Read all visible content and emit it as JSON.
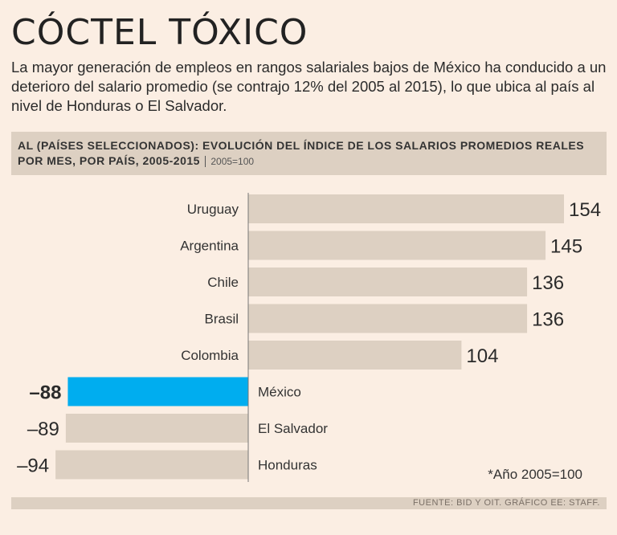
{
  "header": {
    "title": "CÓCTEL TÓXICO",
    "subtitle": "La mayor generación de empleos en rangos salariales bajos de México ha conducido a un deterioro del salario promedio (se contrajo 12% del 2005 al 2015), lo que ubica al país al nivel de Honduras o El Salvador."
  },
  "chart_header": {
    "title": "AL (Países seleccionados): Evolución del índice de los salarios promedios reales por mes, por país, 2005-2015",
    "unit": "2005=100"
  },
  "chart_data": {
    "type": "bar",
    "orientation": "horizontal",
    "title": "AL (Países seleccionados): Evolución del índice de los salarios promedios reales por mes, por país, 2005-2015",
    "unit": "2005=100",
    "categories": [
      "Uruguay",
      "Argentina",
      "Chile",
      "Brasil",
      "Colombia",
      "México",
      "El Salvador",
      "Honduras"
    ],
    "values": [
      154,
      145,
      136,
      136,
      104,
      -88,
      -89,
      -94
    ],
    "value_labels": [
      "154",
      "145",
      "136",
      "136",
      "104",
      "–88",
      "–89",
      "–94"
    ],
    "highlight": "México",
    "annotation": "*Año 2005=100",
    "colors": {
      "bar": "#ddd0c2",
      "highlight": "#00adef",
      "axis": "#777777"
    }
  },
  "footer": {
    "source": "FUENTE: BID Y OIT.   GRÁFICO EE: STAFF."
  }
}
